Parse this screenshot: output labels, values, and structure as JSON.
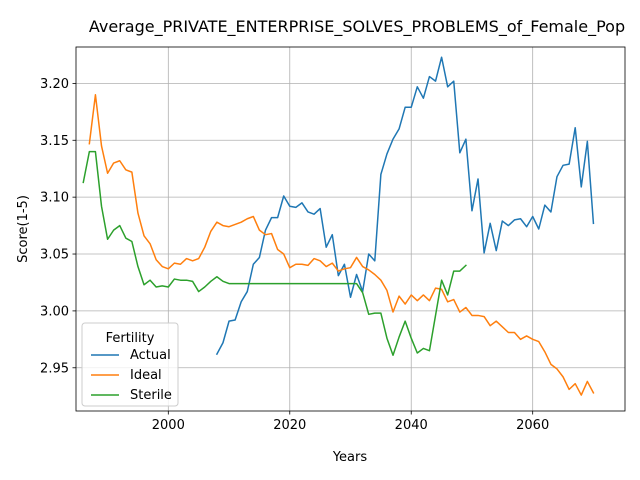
{
  "chart_data": {
    "type": "line",
    "title": "Average_PRIVATE_ENTERPRISE_SOLVES_PROBLEMS_of_Female_Pop",
    "xlabel": "Years",
    "ylabel": "Score(1-5)",
    "xlim": [
      1984.8,
      2075.2
    ],
    "ylim": [
      2.912,
      3.232
    ],
    "xticks": [
      2000,
      2020,
      2040,
      2060
    ],
    "yticks": [
      2.95,
      3.0,
      3.05,
      3.1,
      3.15,
      3.2
    ],
    "xtick_labels": [
      "2000",
      "2020",
      "2040",
      "2060"
    ],
    "ytick_labels": [
      "2.95",
      "3.00",
      "3.05",
      "3.10",
      "3.15",
      "3.20"
    ],
    "grid": true,
    "legend": {
      "title": "Fertility",
      "placement": "lower-left"
    },
    "series": [
      {
        "name": "Actual",
        "color": "#1f77b4",
        "x": [
          2008,
          2009,
          2010,
          2011,
          2012,
          2013,
          2014,
          2015,
          2016,
          2017,
          2018,
          2019,
          2020,
          2021,
          2022,
          2023,
          2024,
          2025,
          2026,
          2027,
          2028,
          2029,
          2030,
          2031,
          2032,
          2033,
          2034,
          2035,
          2036,
          2037,
          2038,
          2039,
          2040,
          2041,
          2042,
          2043,
          2044,
          2045,
          2046,
          2047,
          2048,
          2049,
          2050,
          2051,
          2052,
          2053,
          2054,
          2055,
          2056,
          2057,
          2058,
          2059,
          2060,
          2061,
          2062,
          2063,
          2064,
          2065,
          2066,
          2067,
          2068,
          2069,
          2070
        ],
        "values": [
          2.962,
          2.972,
          2.991,
          2.992,
          3.008,
          3.017,
          3.041,
          3.047,
          3.071,
          3.082,
          3.082,
          3.101,
          3.092,
          3.091,
          3.095,
          3.087,
          3.085,
          3.09,
          3.056,
          3.067,
          3.031,
          3.041,
          3.012,
          3.032,
          3.017,
          3.05,
          3.044,
          3.12,
          3.138,
          3.151,
          3.16,
          3.179,
          3.179,
          3.197,
          3.187,
          3.206,
          3.202,
          3.223,
          3.197,
          3.202,
          3.139,
          3.151,
          3.088,
          3.116,
          3.051,
          3.077,
          3.053,
          3.079,
          3.075,
          3.08,
          3.081,
          3.074,
          3.083,
          3.072,
          3.093,
          3.087,
          3.118,
          3.128,
          3.129,
          3.161,
          3.109,
          3.149,
          3.077
        ]
      },
      {
        "name": "Ideal",
        "color": "#ff7f0e",
        "x": [
          1987,
          1988,
          1989,
          1990,
          1991,
          1992,
          1993,
          1994,
          1995,
          1996,
          1997,
          1998,
          1999,
          2000,
          2001,
          2002,
          2003,
          2004,
          2005,
          2006,
          2007,
          2008,
          2009,
          2010,
          2011,
          2012,
          2013,
          2014,
          2015,
          2016,
          2017,
          2018,
          2019,
          2020,
          2021,
          2022,
          2023,
          2024,
          2025,
          2026,
          2027,
          2028,
          2029,
          2030,
          2031,
          2032,
          2033,
          2034,
          2035,
          2036,
          2037,
          2038,
          2039,
          2040,
          2041,
          2042,
          2043,
          2044,
          2045,
          2046,
          2047,
          2048,
          2049,
          2050,
          2051,
          2052,
          2053,
          2054,
          2055,
          2056,
          2057,
          2058,
          2059,
          2060,
          2061,
          2062,
          2063,
          2064,
          2065,
          2066,
          2067,
          2068,
          2069,
          2070
        ],
        "values": [
          3.147,
          3.19,
          3.145,
          3.121,
          3.13,
          3.132,
          3.124,
          3.122,
          3.086,
          3.066,
          3.059,
          3.045,
          3.039,
          3.037,
          3.042,
          3.041,
          3.046,
          3.044,
          3.046,
          3.056,
          3.07,
          3.078,
          3.075,
          3.074,
          3.076,
          3.078,
          3.081,
          3.083,
          3.071,
          3.067,
          3.068,
          3.054,
          3.05,
          3.038,
          3.041,
          3.041,
          3.04,
          3.046,
          3.044,
          3.039,
          3.042,
          3.035,
          3.037,
          3.038,
          3.047,
          3.039,
          3.036,
          3.032,
          3.027,
          3.018,
          2.999,
          3.013,
          3.006,
          3.014,
          3.009,
          3.014,
          3.009,
          3.02,
          3.019,
          3.008,
          3.01,
          2.999,
          3.003,
          2.996,
          2.996,
          2.995,
          2.987,
          2.991,
          2.986,
          2.981,
          2.981,
          2.975,
          2.978,
          2.975,
          2.973,
          2.964,
          2.953,
          2.949,
          2.942,
          2.931,
          2.936,
          2.926,
          2.938,
          2.928
        ]
      },
      {
        "name": "Sterile",
        "color": "#2ca02c",
        "x": [
          1986,
          1987,
          1988,
          1989,
          1990,
          1991,
          1992,
          1993,
          1994,
          1995,
          1996,
          1997,
          1998,
          1999,
          2000,
          2001,
          2002,
          2003,
          2004,
          2005,
          2006,
          2007,
          2008,
          2009,
          2010,
          2011,
          2012,
          2013,
          2014,
          2015,
          2016,
          2017,
          2018,
          2019,
          2020,
          2021,
          2022,
          2023,
          2024,
          2025,
          2026,
          2027,
          2028,
          2029,
          2030,
          2031,
          2032,
          2033,
          2034,
          2035,
          2036,
          2037,
          2038,
          2039,
          2040,
          2041,
          2042,
          2043,
          2044,
          2045,
          2046,
          2047,
          2048,
          2049
        ],
        "values": [
          3.113,
          3.14,
          3.14,
          3.092,
          3.063,
          3.071,
          3.075,
          3.064,
          3.061,
          3.039,
          3.023,
          3.027,
          3.021,
          3.022,
          3.021,
          3.028,
          3.027,
          3.027,
          3.026,
          3.017,
          3.021,
          3.026,
          3.03,
          3.026,
          3.024,
          3.024,
          3.024,
          3.024,
          3.024,
          3.024,
          3.024,
          3.024,
          3.024,
          3.024,
          3.024,
          3.024,
          3.024,
          3.024,
          3.024,
          3.024,
          3.024,
          3.024,
          3.024,
          3.024,
          3.024,
          3.024,
          3.016,
          2.997,
          2.998,
          2.998,
          2.976,
          2.961,
          2.977,
          2.991,
          2.976,
          2.963,
          2.967,
          2.965,
          2.996,
          3.027,
          3.014,
          3.035,
          3.035,
          3.04
        ]
      }
    ]
  }
}
